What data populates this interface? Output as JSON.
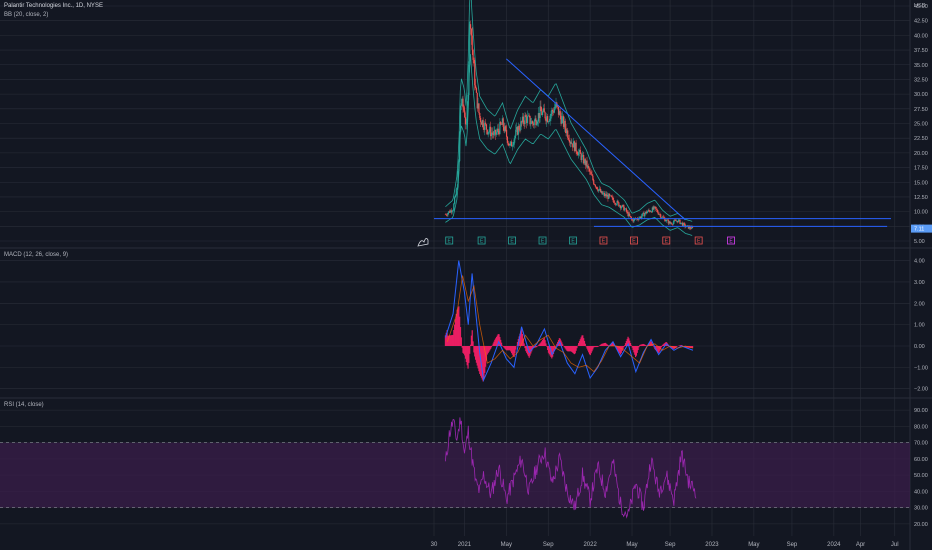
{
  "legends": {
    "main_title": "Palantir Technologies Inc., 1D, NYSE",
    "bb": "BB (20, close, 2)",
    "macd": "MACD (12, 26, close, 9)",
    "rsi": "RSI (14, close)"
  },
  "currency": "USD",
  "last_price_label": "7.11",
  "price_label_color": "#5b9cf6",
  "colors": {
    "background": "#131722",
    "grid": "#2a2e39",
    "candle_up": "#26a69a",
    "candle_down": "#ef5350",
    "bb_band": "#26a69a",
    "trendline": "#2962ff",
    "macd_line": "#2962ff",
    "signal_line": "#ff6d00",
    "histogram": "#e91e63",
    "rsi_line": "#9c27b0",
    "rsi_band": "#3a1d4a"
  },
  "x_axis": {
    "ticks": [
      {
        "label": "30",
        "t": 0
      },
      {
        "label": "2021",
        "t": 0.08
      },
      {
        "label": "May",
        "t": 0.19
      },
      {
        "label": "Sep",
        "t": 0.3
      },
      {
        "label": "2022",
        "t": 0.41
      },
      {
        "label": "May",
        "t": 0.52
      },
      {
        "label": "Sep",
        "t": 0.62
      },
      {
        "label": "2023",
        "t": 0.73
      },
      {
        "label": "May",
        "t": 0.84
      },
      {
        "label": "Sep",
        "t": 0.94
      },
      {
        "label": "2024",
        "t": 1.05
      },
      {
        "label": "Apr",
        "t": 1.12
      },
      {
        "label": "Jul",
        "t": 1.21
      }
    ]
  },
  "chart_data": [
    {
      "type": "candlestick",
      "pane": "price",
      "ylim": [
        5,
        45
      ],
      "yticks": [
        5,
        7.5,
        10,
        12.5,
        15,
        17.5,
        20,
        22.5,
        25,
        27.5,
        30,
        32.5,
        35,
        37.5,
        40,
        42.5,
        45
      ],
      "ytick_labels": [
        "5.00",
        "7.50",
        "10.00",
        "12.50",
        "15.00",
        "17.50",
        "20.00",
        "22.50",
        "25.00",
        "27.50",
        "30.00",
        "32.50",
        "35.00",
        "37.50",
        "40.00",
        "42.50",
        "45.00"
      ],
      "close_path": [
        [
          0.03,
          9.5
        ],
        [
          0.05,
          10.5
        ],
        [
          0.06,
          14
        ],
        [
          0.065,
          18
        ],
        [
          0.07,
          29
        ],
        [
          0.08,
          27
        ],
        [
          0.085,
          24
        ],
        [
          0.09,
          32
        ],
        [
          0.095,
          44
        ],
        [
          0.1,
          38
        ],
        [
          0.11,
          30
        ],
        [
          0.12,
          26
        ],
        [
          0.14,
          24
        ],
        [
          0.16,
          23
        ],
        [
          0.18,
          25
        ],
        [
          0.2,
          21
        ],
        [
          0.22,
          24
        ],
        [
          0.24,
          26
        ],
        [
          0.26,
          25
        ],
        [
          0.28,
          27
        ],
        [
          0.3,
          26
        ],
        [
          0.32,
          28
        ],
        [
          0.34,
          25
        ],
        [
          0.36,
          22
        ],
        [
          0.38,
          20
        ],
        [
          0.4,
          18
        ],
        [
          0.42,
          15
        ],
        [
          0.44,
          13
        ],
        [
          0.46,
          12.5
        ],
        [
          0.48,
          11.5
        ],
        [
          0.5,
          10.5
        ],
        [
          0.52,
          8.5
        ],
        [
          0.54,
          9
        ],
        [
          0.56,
          10
        ],
        [
          0.58,
          10.5
        ],
        [
          0.6,
          9
        ],
        [
          0.62,
          8
        ],
        [
          0.64,
          8.5
        ],
        [
          0.66,
          7.5
        ],
        [
          0.68,
          7.1
        ]
      ],
      "trendlines": [
        {
          "from": [
            0.19,
            36
          ],
          "to": [
            0.66,
            8.6
          ]
        },
        {
          "from": [
            0.0,
            8.8
          ],
          "to": [
            1.2,
            8.8
          ]
        },
        {
          "from": [
            0.42,
            7.5
          ],
          "to": [
            1.19,
            7.5
          ]
        }
      ],
      "earnings_markers": [
        {
          "label": "E",
          "t": 0.04,
          "kind": "positive"
        },
        {
          "label": "E",
          "t": 0.125,
          "kind": "positive"
        },
        {
          "label": "E",
          "t": 0.205,
          "kind": "positive"
        },
        {
          "label": "E",
          "t": 0.285,
          "kind": "positive"
        },
        {
          "label": "E",
          "t": 0.365,
          "kind": "positive"
        },
        {
          "label": "E",
          "t": 0.445,
          "kind": "negative"
        },
        {
          "label": "E",
          "t": 0.525,
          "kind": "negative"
        },
        {
          "label": "E",
          "t": 0.61,
          "kind": "negative"
        },
        {
          "label": "E",
          "t": 0.695,
          "kind": "negative"
        },
        {
          "label": "E",
          "t": 0.78,
          "kind": "upcoming"
        }
      ]
    },
    {
      "type": "line",
      "pane": "macd",
      "ylim": [
        -2.2,
        4.4
      ],
      "yticks": [
        -2,
        -1,
        0,
        1,
        2,
        3,
        4
      ],
      "ytick_labels": [
        "−2.00",
        "−1.00",
        "0.00",
        "1.00",
        "2.00",
        "3.00",
        "4.00"
      ],
      "macd_path": [
        [
          0.03,
          0.4
        ],
        [
          0.05,
          1.5
        ],
        [
          0.065,
          4.0
        ],
        [
          0.08,
          2.5
        ],
        [
          0.09,
          1.0
        ],
        [
          0.1,
          3.4
        ],
        [
          0.11,
          1.5
        ],
        [
          0.12,
          -0.3
        ],
        [
          0.13,
          -1.6
        ],
        [
          0.15,
          -0.8
        ],
        [
          0.17,
          0.2
        ],
        [
          0.19,
          -0.6
        ],
        [
          0.21,
          -1.0
        ],
        [
          0.23,
          0.9
        ],
        [
          0.25,
          -0.3
        ],
        [
          0.27,
          0.1
        ],
        [
          0.29,
          0.8
        ],
        [
          0.31,
          -0.4
        ],
        [
          0.33,
          0.2
        ],
        [
          0.35,
          -0.8
        ],
        [
          0.37,
          -1.3
        ],
        [
          0.39,
          -0.4
        ],
        [
          0.41,
          -1.5
        ],
        [
          0.43,
          -1.0
        ],
        [
          0.45,
          -0.2
        ],
        [
          0.47,
          0.2
        ],
        [
          0.49,
          -0.5
        ],
        [
          0.51,
          0.1
        ],
        [
          0.53,
          -1.2
        ],
        [
          0.55,
          -0.3
        ],
        [
          0.57,
          0.3
        ],
        [
          0.59,
          -0.4
        ],
        [
          0.61,
          0.1
        ],
        [
          0.63,
          -0.2
        ],
        [
          0.65,
          0.0
        ],
        [
          0.68,
          -0.2
        ]
      ],
      "signal_path": [
        [
          0.035,
          0.2
        ],
        [
          0.06,
          1.5
        ],
        [
          0.075,
          3.3
        ],
        [
          0.09,
          2.1
        ],
        [
          0.105,
          2.8
        ],
        [
          0.12,
          1.0
        ],
        [
          0.14,
          -0.8
        ],
        [
          0.16,
          -0.6
        ],
        [
          0.18,
          -0.2
        ],
        [
          0.2,
          -0.6
        ],
        [
          0.22,
          -0.3
        ],
        [
          0.24,
          0.5
        ],
        [
          0.26,
          0.0
        ],
        [
          0.28,
          0.3
        ],
        [
          0.3,
          0.5
        ],
        [
          0.32,
          -0.1
        ],
        [
          0.34,
          -0.3
        ],
        [
          0.36,
          -0.8
        ],
        [
          0.38,
          -1.0
        ],
        [
          0.4,
          -0.9
        ],
        [
          0.42,
          -1.2
        ],
        [
          0.44,
          -0.7
        ],
        [
          0.46,
          0.0
        ],
        [
          0.48,
          0.0
        ],
        [
          0.5,
          -0.2
        ],
        [
          0.52,
          -0.5
        ],
        [
          0.54,
          -0.8
        ],
        [
          0.56,
          0.0
        ],
        [
          0.58,
          0.1
        ],
        [
          0.6,
          -0.2
        ],
        [
          0.62,
          0.0
        ],
        [
          0.64,
          -0.1
        ],
        [
          0.66,
          0.0
        ],
        [
          0.68,
          -0.1
        ]
      ]
    },
    {
      "type": "line",
      "pane": "rsi",
      "ylim": [
        15,
        95
      ],
      "yticks": [
        20,
        30,
        40,
        50,
        60,
        70,
        80,
        90
      ],
      "ytick_labels": [
        "20.00",
        "30.00",
        "40.00",
        "50.00",
        "60.00",
        "70.00",
        "80.00",
        "90.00"
      ],
      "upper_band": 70,
      "lower_band": 30,
      "rsi_path": [
        [
          0.03,
          57
        ],
        [
          0.04,
          75
        ],
        [
          0.05,
          83
        ],
        [
          0.06,
          72
        ],
        [
          0.07,
          85
        ],
        [
          0.08,
          63
        ],
        [
          0.09,
          77
        ],
        [
          0.1,
          60
        ],
        [
          0.11,
          45
        ],
        [
          0.12,
          40
        ],
        [
          0.13,
          50
        ],
        [
          0.15,
          38
        ],
        [
          0.17,
          55
        ],
        [
          0.19,
          35
        ],
        [
          0.21,
          48
        ],
        [
          0.23,
          60
        ],
        [
          0.25,
          40
        ],
        [
          0.27,
          55
        ],
        [
          0.29,
          65
        ],
        [
          0.31,
          45
        ],
        [
          0.33,
          60
        ],
        [
          0.35,
          40
        ],
        [
          0.37,
          30
        ],
        [
          0.39,
          50
        ],
        [
          0.41,
          35
        ],
        [
          0.43,
          55
        ],
        [
          0.45,
          40
        ],
        [
          0.47,
          58
        ],
        [
          0.49,
          32
        ],
        [
          0.51,
          25
        ],
        [
          0.53,
          45
        ],
        [
          0.55,
          30
        ],
        [
          0.57,
          60
        ],
        [
          0.59,
          40
        ],
        [
          0.61,
          50
        ],
        [
          0.63,
          35
        ],
        [
          0.65,
          63
        ],
        [
          0.67,
          45
        ],
        [
          0.69,
          40
        ]
      ]
    }
  ]
}
